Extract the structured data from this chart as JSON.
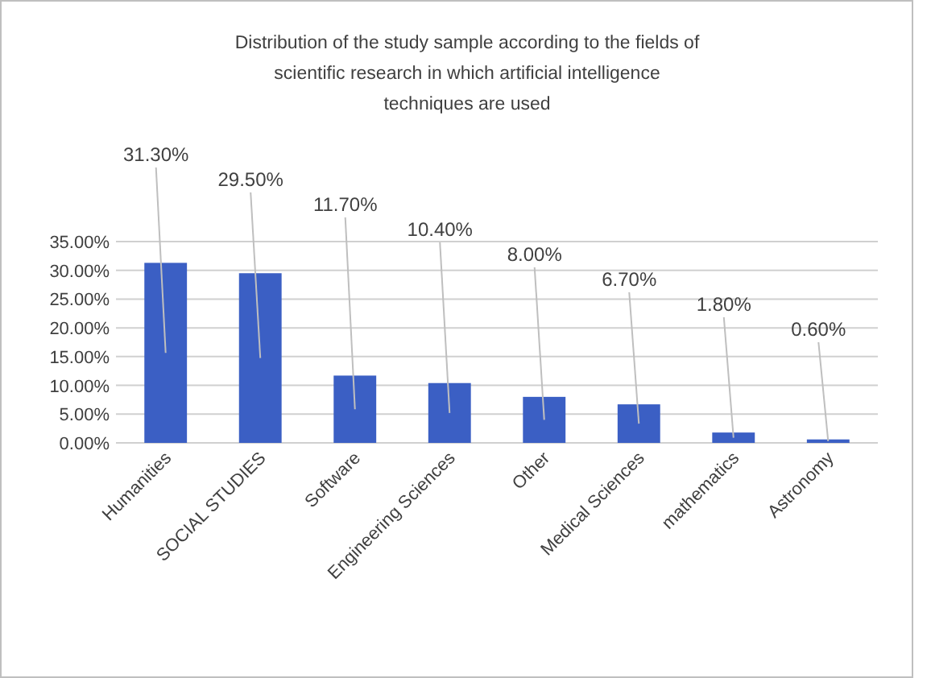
{
  "chart_data": {
    "type": "bar",
    "title": "Distribution of the study sample according to the fields of scientific research in which artificial intelligence  techniques are used",
    "categories": [
      "Humanities",
      "SOCIAL STUDIES",
      "Software",
      "Engineering Sciences",
      "Other",
      "Medical Sciences",
      "mathematics",
      "Astronomy"
    ],
    "values": [
      31.3,
      29.5,
      11.7,
      10.4,
      8.0,
      6.7,
      1.8,
      0.6
    ],
    "value_labels": [
      "31.30%",
      "29.50%",
      "11.70%",
      "10.40%",
      "8.00%",
      "6.70%",
      "1.80%",
      "0.60%"
    ],
    "color": "#3b5fc4",
    "ylim": [
      0,
      35
    ],
    "yticks": [
      {
        "value": 0,
        "label": "0.00%"
      },
      {
        "value": 5,
        "label": "5.00%"
      },
      {
        "value": 10,
        "label": "10.00%"
      },
      {
        "value": 15,
        "label": "15.00%"
      },
      {
        "value": 20,
        "label": "20.00%"
      },
      {
        "value": 25,
        "label": "25.00%"
      },
      {
        "value": 30,
        "label": "30.00%"
      },
      {
        "value": 35,
        "label": "35.00%"
      }
    ],
    "grid": true
  }
}
